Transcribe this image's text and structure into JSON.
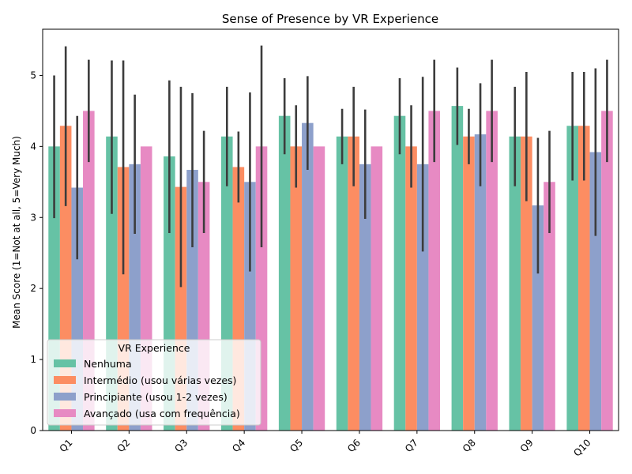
{
  "chart_data": {
    "type": "bar",
    "title": "Sense of Presence by VR Experience",
    "xlabel": "",
    "ylabel": "Mean Score (1=Not at all, 5=Very Much)",
    "ylim": [
      0,
      5.65
    ],
    "yticks": [
      0,
      1,
      2,
      3,
      4,
      5
    ],
    "categories": [
      "Q1",
      "Q2",
      "Q3",
      "Q4",
      "Q5",
      "Q6",
      "Q7",
      "Q8",
      "Q9",
      "Q10"
    ],
    "legend": {
      "title": "VR Experience",
      "placement": "lower-left"
    },
    "error_bars": true,
    "grid": false,
    "series": [
      {
        "name": "Nenhuma",
        "color": "#66c2a5",
        "values": [
          4.0,
          4.14,
          3.86,
          4.14,
          4.43,
          4.14,
          4.43,
          4.57,
          4.14,
          4.29
        ],
        "err_low": [
          2.99,
          3.05,
          2.78,
          3.44,
          3.89,
          3.75,
          3.89,
          4.02,
          3.44,
          3.52
        ],
        "err_high": [
          5.0,
          5.21,
          4.93,
          4.84,
          4.96,
          4.53,
          4.96,
          5.11,
          4.84,
          5.05
        ]
      },
      {
        "name": "Intermédio (usou várias vezes)",
        "color": "#fc8d62",
        "values": [
          4.29,
          3.71,
          3.43,
          3.71,
          4.0,
          4.14,
          4.0,
          4.14,
          4.14,
          4.29
        ],
        "err_low": [
          3.16,
          2.2,
          2.02,
          3.21,
          3.42,
          3.44,
          3.42,
          3.75,
          3.23,
          3.52
        ],
        "err_high": [
          5.41,
          5.21,
          4.84,
          4.21,
          4.58,
          4.84,
          4.58,
          4.53,
          5.05,
          5.05
        ]
      },
      {
        "name": "Principiante (usou 1-2 vezes)",
        "color": "#8da0cb",
        "values": [
          3.42,
          3.75,
          3.67,
          3.5,
          4.33,
          3.75,
          3.75,
          4.17,
          3.17,
          3.92
        ],
        "err_low": [
          2.41,
          2.77,
          2.58,
          2.24,
          3.67,
          2.98,
          2.52,
          3.44,
          2.21,
          2.74
        ],
        "err_high": [
          4.43,
          4.73,
          4.75,
          4.76,
          4.99,
          4.52,
          4.98,
          4.89,
          4.12,
          5.1
        ]
      },
      {
        "name": "Avançado (usa com frequência)",
        "color": "#e78ac3",
        "values": [
          4.5,
          4.0,
          3.5,
          4.0,
          4.0,
          4.0,
          4.5,
          4.5,
          3.5,
          4.5
        ],
        "err_low": [
          3.78,
          4.0,
          2.78,
          2.58,
          4.0,
          4.0,
          3.78,
          3.78,
          2.78,
          3.78
        ],
        "err_high": [
          5.22,
          4.0,
          4.22,
          5.42,
          4.0,
          4.0,
          5.22,
          5.22,
          4.22,
          5.22
        ]
      }
    ]
  }
}
